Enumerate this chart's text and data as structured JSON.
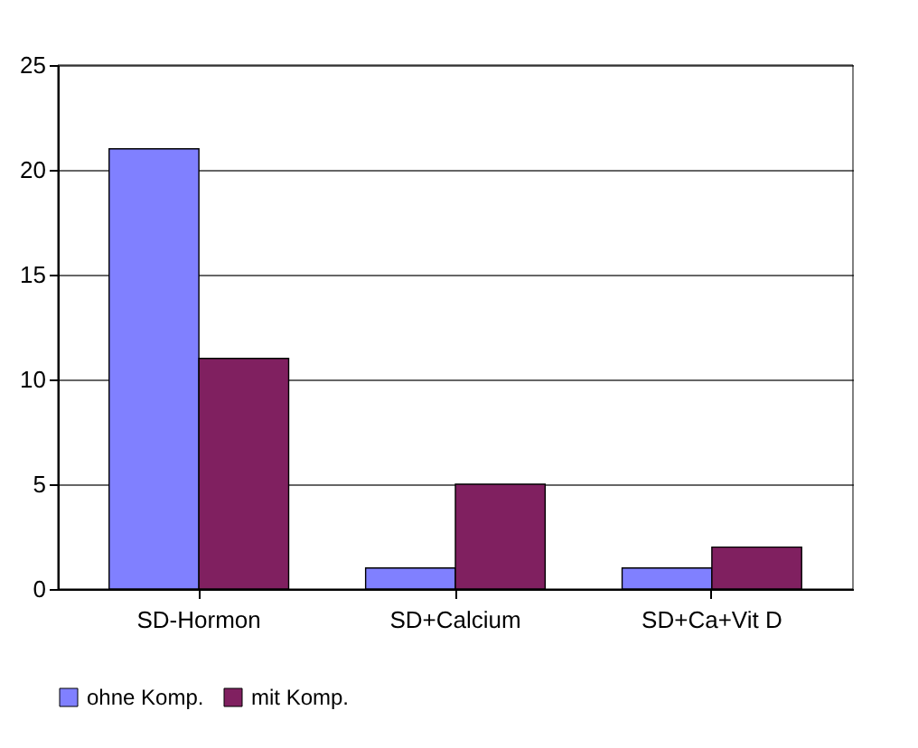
{
  "chart_data": {
    "type": "bar",
    "categories": [
      "SD-Hormon",
      "SD+Calcium",
      "SD+Ca+Vit D"
    ],
    "series": [
      {
        "name": "ohne Komp.",
        "color": "#8080ff",
        "values": [
          21,
          1,
          1
        ]
      },
      {
        "name": "mit Komp.",
        "color": "#802060",
        "values": [
          11,
          5,
          2
        ]
      }
    ],
    "ylim": [
      0,
      25
    ],
    "yticks": [
      0,
      5,
      10,
      15,
      20,
      25
    ],
    "grid": "y",
    "legend": "bottom"
  }
}
